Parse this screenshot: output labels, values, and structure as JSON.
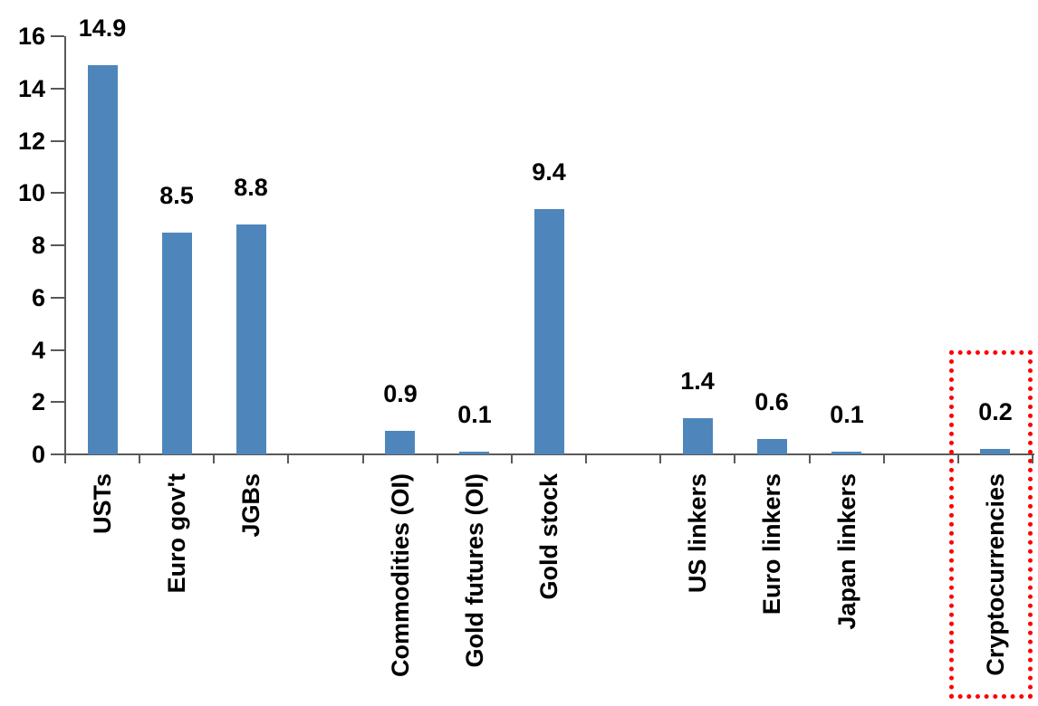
{
  "chart_data": {
    "type": "bar",
    "categories": [
      "USTs",
      "Euro gov't",
      "JGBs",
      "Commodities (OI)",
      "Gold futures (OI)",
      "Gold stock",
      "US linkers",
      "Euro linkers",
      "Japan linkers",
      "Cryptocurrencies"
    ],
    "values": [
      14.9,
      8.5,
      8.8,
      0.9,
      0.1,
      9.4,
      1.4,
      0.6,
      0.1,
      0.2
    ],
    "value_labels": [
      "14.9",
      "8.5",
      "8.8",
      "0.9",
      "0.1",
      "9.4",
      "1.4",
      "0.6",
      "0.1",
      "0.2"
    ],
    "group_breaks_after": [
      2,
      5,
      8
    ],
    "ylim": [
      0,
      16
    ],
    "ytick_step": 2,
    "ytick_labels": [
      "0",
      "2",
      "4",
      "6",
      "8",
      "10",
      "12",
      "14",
      "16"
    ],
    "grid": false,
    "legend": false,
    "bar_color": "#4E86BC",
    "axis_color": "#595959",
    "text_color": "#000000",
    "highlight": {
      "category": "Cryptocurrencies",
      "style": "dotted-box",
      "color": "#FF0000"
    }
  }
}
